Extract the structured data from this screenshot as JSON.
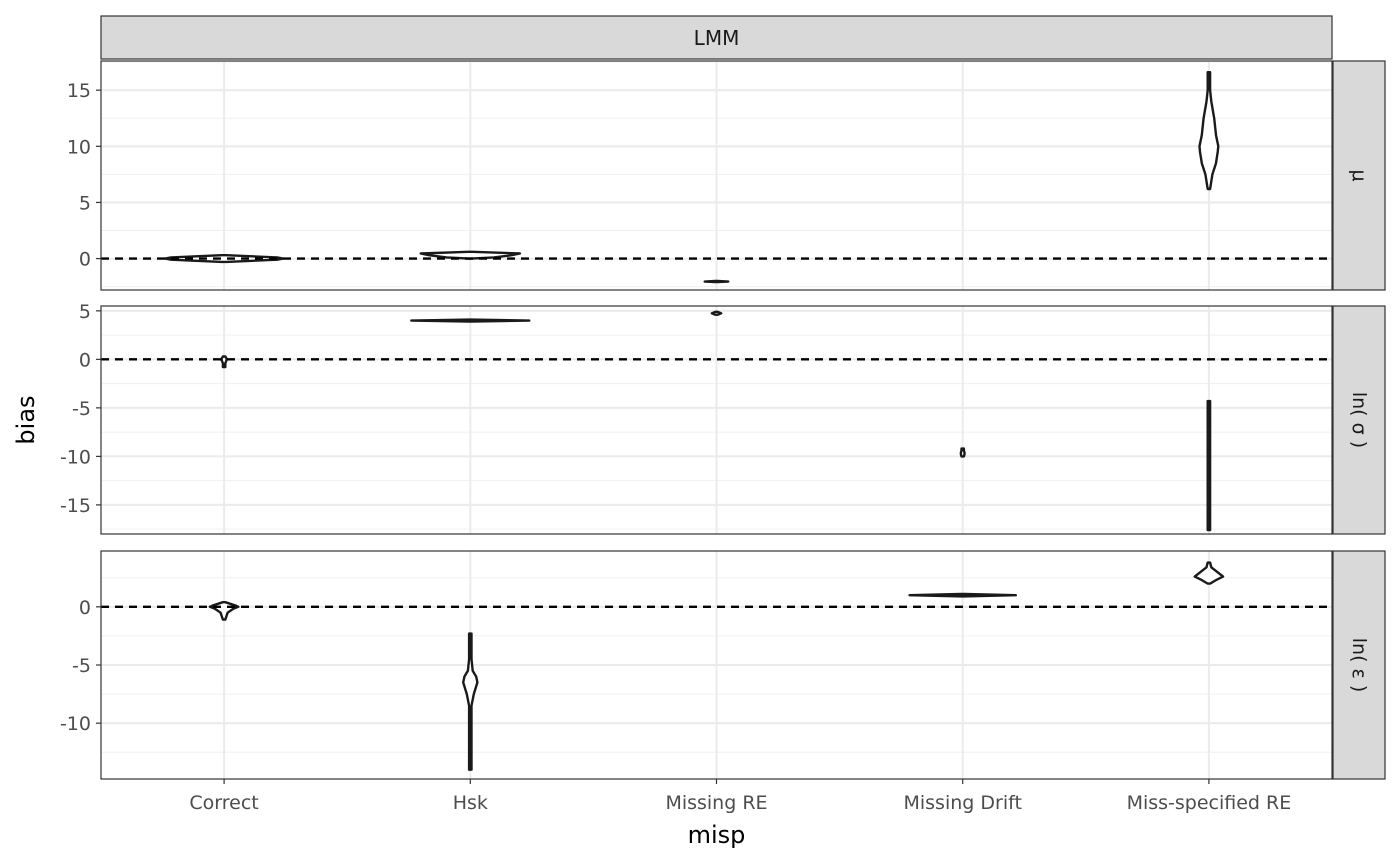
{
  "chart_data": {
    "type": "violin",
    "facet_column": "LMM",
    "facet_rows": [
      "μ",
      "ln( σ )",
      "ln( ε )"
    ],
    "categories": [
      "Correct",
      "Hsk",
      "Missing RE",
      "Missing Drift",
      "Miss-specified RE"
    ],
    "xlabel": "misp",
    "ylabel": "bias",
    "reference_line": {
      "y": 0,
      "style": "dashed"
    },
    "grid": true,
    "panels": [
      {
        "row": "μ",
        "ylim": [
          -2.8,
          17.6
        ],
        "yticks": [
          0,
          5,
          10,
          15
        ],
        "violins": [
          {
            "category": "Correct",
            "min": -0.3,
            "max": 0.3,
            "profile": [
              [
                -0.3,
                0.02
              ],
              [
                -0.1,
                0.45
              ],
              [
                0,
                0.5
              ],
              [
                0.1,
                0.45
              ],
              [
                0.3,
                0.02
              ]
            ]
          },
          {
            "category": "Hsk",
            "min": 0.0,
            "max": 0.6,
            "profile": [
              [
                0,
                0.01
              ],
              [
                0.1,
                0.2
              ],
              [
                0.3,
                0.35
              ],
              [
                0.45,
                0.42
              ],
              [
                0.6,
                0.02
              ]
            ]
          },
          {
            "category": "Missing RE",
            "min": -2.1,
            "max": -2.0,
            "profile": [
              [
                -2.1,
                0.0
              ],
              [
                -2.05,
                0.1
              ],
              [
                -2.0,
                0.0
              ]
            ]
          },
          {
            "category": "Missing Drift",
            "min": null,
            "max": null,
            "profile": []
          },
          {
            "category": "Miss-specified RE",
            "min": 6.2,
            "max": 16.6,
            "profile": [
              [
                6.2,
                0.01
              ],
              [
                7.5,
                0.03
              ],
              [
                8.5,
                0.06
              ],
              [
                9.5,
                0.075
              ],
              [
                10,
                0.08
              ],
              [
                11,
                0.06
              ],
              [
                12.5,
                0.045
              ],
              [
                14,
                0.02
              ],
              [
                15,
                0.01
              ],
              [
                16.6,
                0.005
              ]
            ]
          }
        ]
      },
      {
        "row": "ln( σ )",
        "ylim": [
          -18,
          5.5
        ],
        "yticks": [
          -15,
          -10,
          -5,
          0,
          5
        ],
        "violins": [
          {
            "category": "Correct",
            "min": -0.8,
            "max": 0.3,
            "profile": [
              [
                -0.8,
                0.003
              ],
              [
                -0.4,
                0.005
              ],
              [
                -0.1,
                0.02
              ],
              [
                0,
                0.02
              ],
              [
                0.1,
                0.02
              ],
              [
                0.3,
                0.002
              ]
            ]
          },
          {
            "category": "Hsk",
            "min": 3.9,
            "max": 4.1,
            "profile": [
              [
                3.9,
                0.0
              ],
              [
                4.0,
                0.5
              ],
              [
                4.1,
                0.0
              ]
            ]
          },
          {
            "category": "Missing RE",
            "min": 4.6,
            "max": 4.9,
            "profile": [
              [
                4.6,
                0.0
              ],
              [
                4.75,
                0.04
              ],
              [
                4.9,
                0.0
              ]
            ]
          },
          {
            "category": "Missing Drift",
            "min": -10.0,
            "max": -9.2,
            "profile": [
              [
                -10.0,
                0.003
              ],
              [
                -9.8,
                0.015
              ],
              [
                -9.6,
                0.015
              ],
              [
                -9.4,
                0.005
              ],
              [
                -9.2,
                0.002
              ]
            ]
          },
          {
            "category": "Miss-specified RE",
            "min": -17.6,
            "max": -4.3,
            "profile": [
              [
                -17.6,
                0.002
              ],
              [
                -14,
                0.004
              ],
              [
                -10,
                0.005
              ],
              [
                -7,
                0.004
              ],
              [
                -4.3,
                0.002
              ]
            ]
          }
        ]
      },
      {
        "row": "ln( ε )",
        "ylim": [
          -14.8,
          4.8
        ],
        "yticks": [
          -10,
          -5,
          0
        ],
        "violins": [
          {
            "category": "Correct",
            "min": -1.1,
            "max": 0.4,
            "profile": [
              [
                -1.1,
                0.004
              ],
              [
                -0.5,
                0.03
              ],
              [
                -0.15,
                0.08
              ],
              [
                0,
                0.12
              ],
              [
                0.1,
                0.1
              ],
              [
                0.4,
                0.005
              ]
            ]
          },
          {
            "category": "Hsk",
            "min": -14.0,
            "max": -2.3,
            "profile": [
              [
                -14.0,
                0.005
              ],
              [
                -10,
                0.007
              ],
              [
                -8.5,
                0.01
              ],
              [
                -7.5,
                0.03
              ],
              [
                -6.5,
                0.06
              ],
              [
                -6,
                0.05
              ],
              [
                -5.5,
                0.02
              ],
              [
                -4.5,
                0.005
              ],
              [
                -2.3,
                0.004
              ]
            ]
          },
          {
            "category": "Missing RE",
            "min": null,
            "max": null,
            "profile": []
          },
          {
            "category": "Missing Drift",
            "min": 0.9,
            "max": 1.1,
            "profile": [
              [
                0.9,
                0.0
              ],
              [
                1.0,
                0.45
              ],
              [
                1.1,
                0.0
              ]
            ]
          },
          {
            "category": "Miss-specified RE",
            "min": 2.0,
            "max": 3.8,
            "profile": [
              [
                2.0,
                0.004
              ],
              [
                2.3,
                0.06
              ],
              [
                2.6,
                0.12
              ],
              [
                3.0,
                0.07
              ],
              [
                3.4,
                0.02
              ],
              [
                3.8,
                0.005
              ]
            ]
          }
        ]
      }
    ]
  }
}
